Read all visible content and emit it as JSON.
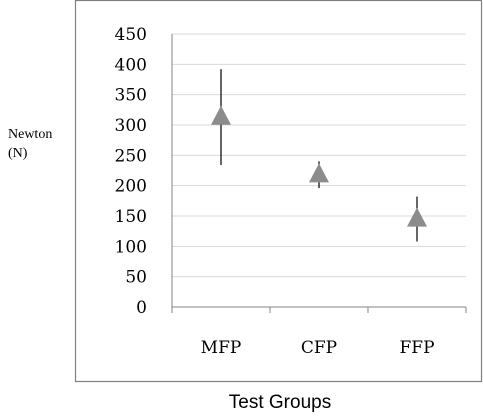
{
  "chart_data": {
    "type": "scatter",
    "categories": [
      "MFP",
      "CFP",
      "FFP"
    ],
    "series": [
      {
        "values": [
          313,
          218,
          145
        ],
        "err_high": [
          392,
          240,
          182
        ],
        "err_low": [
          234,
          196,
          108
        ]
      }
    ],
    "ylabel": [
      "Newton",
      "(N)"
    ],
    "xlabel": "Test Groups",
    "ylim": [
      0,
      450
    ],
    "yticks": [
      0,
      50,
      100,
      150,
      200,
      250,
      300,
      350,
      400,
      450
    ],
    "grid": true,
    "marker": "triangle",
    "colors": {
      "marker": "#8c8c8c",
      "errorbar": "#000000",
      "grid": "#d9d9d9",
      "frame": "#808080",
      "axis": "#868686"
    }
  }
}
